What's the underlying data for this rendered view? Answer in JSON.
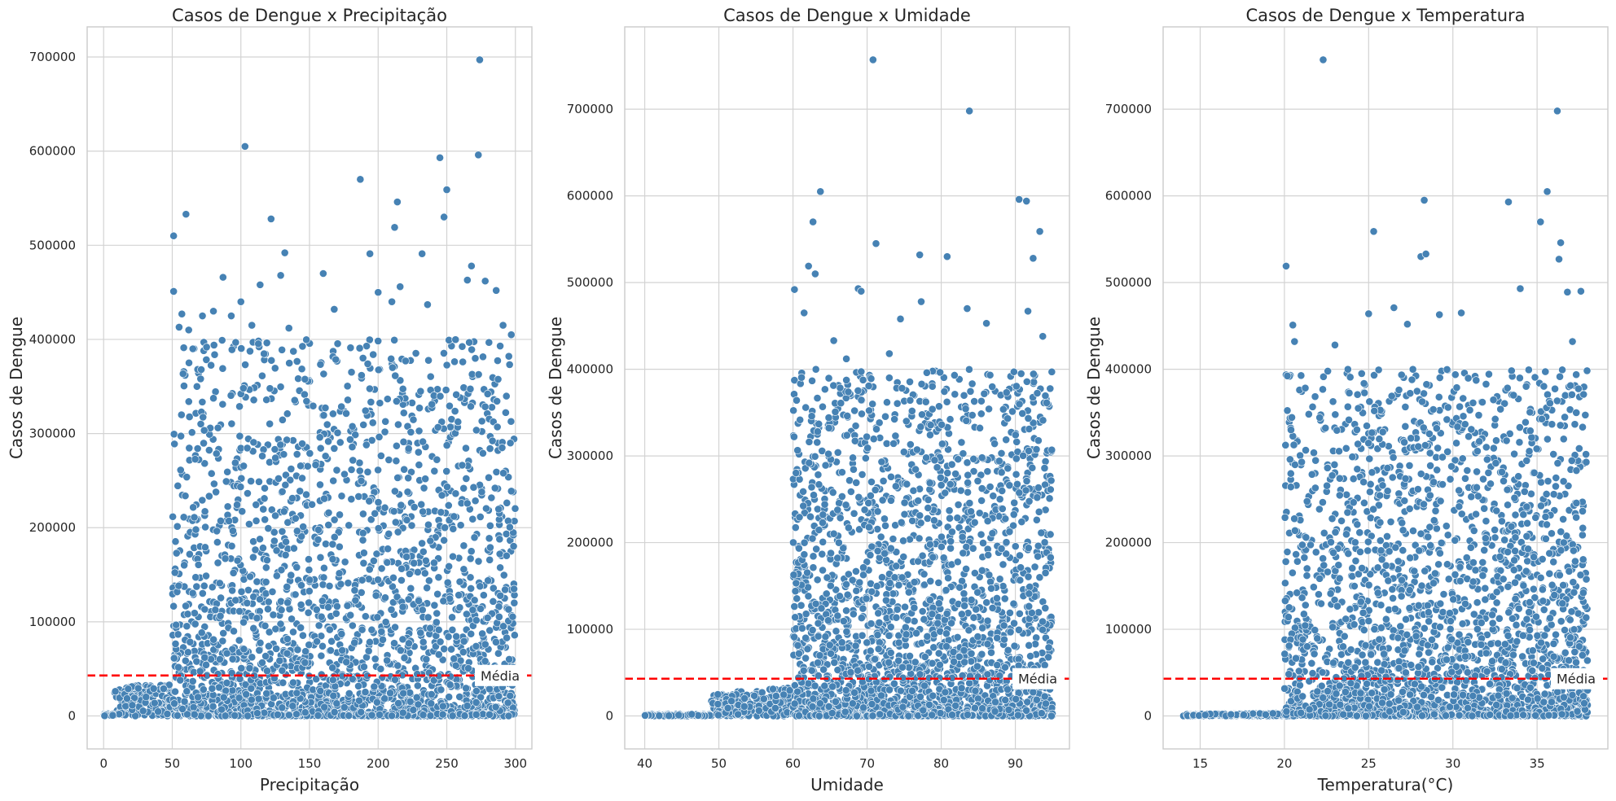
{
  "colors": {
    "points": "#4682b4",
    "mean_line": "#ff0000",
    "grid": "#d3d3d3",
    "spine": "#cccccc"
  },
  "chart_data": [
    {
      "type": "scatter",
      "title": "Casos de Dengue x Precipitação",
      "xlabel": "Precipitação",
      "ylabel": "Casos de Dengue",
      "xlim": [
        -12,
        312
      ],
      "ylim": [
        -35000,
        732000
      ],
      "xticks": [
        0,
        50,
        100,
        150,
        200,
        250,
        300
      ],
      "yticks": [
        0,
        100000,
        200000,
        300000,
        400000,
        500000,
        600000,
        700000
      ],
      "grid": true,
      "mean_value": 43000,
      "mean_label": "Média",
      "x_threshold": 50,
      "x_range": [
        0,
        300
      ],
      "points": [
        {
          "x": 51,
          "y": 510000
        },
        {
          "x": 51,
          "y": 451000
        },
        {
          "x": 55,
          "y": 413000
        },
        {
          "x": 57,
          "y": 427000
        },
        {
          "x": 60,
          "y": 533000
        },
        {
          "x": 62,
          "y": 410000
        },
        {
          "x": 65,
          "y": 390000
        },
        {
          "x": 68,
          "y": 350000
        },
        {
          "x": 72,
          "y": 425000
        },
        {
          "x": 80,
          "y": 430000
        },
        {
          "x": 87,
          "y": 466000
        },
        {
          "x": 93,
          "y": 425000
        },
        {
          "x": 100,
          "y": 440000
        },
        {
          "x": 103,
          "y": 605000
        },
        {
          "x": 108,
          "y": 415000
        },
        {
          "x": 114,
          "y": 458000
        },
        {
          "x": 122,
          "y": 528000
        },
        {
          "x": 129,
          "y": 468000
        },
        {
          "x": 132,
          "y": 492000
        },
        {
          "x": 135,
          "y": 412000
        },
        {
          "x": 160,
          "y": 470000
        },
        {
          "x": 168,
          "y": 432000
        },
        {
          "x": 187,
          "y": 570000
        },
        {
          "x": 194,
          "y": 491000
        },
        {
          "x": 200,
          "y": 450000
        },
        {
          "x": 210,
          "y": 440000
        },
        {
          "x": 212,
          "y": 519000
        },
        {
          "x": 214,
          "y": 546000
        },
        {
          "x": 216,
          "y": 456000
        },
        {
          "x": 232,
          "y": 491000
        },
        {
          "x": 236,
          "y": 437000
        },
        {
          "x": 245,
          "y": 593000
        },
        {
          "x": 248,
          "y": 530000
        },
        {
          "x": 250,
          "y": 559000
        },
        {
          "x": 265,
          "y": 463000
        },
        {
          "x": 268,
          "y": 478000
        },
        {
          "x": 273,
          "y": 596000
        },
        {
          "x": 274,
          "y": 697000
        },
        {
          "x": 278,
          "y": 462000
        },
        {
          "x": 286,
          "y": 452000
        },
        {
          "x": 291,
          "y": 415000
        },
        {
          "x": 297,
          "y": 405000
        }
      ]
    },
    {
      "type": "scatter",
      "title": "Casos de Dengue x Umidade",
      "xlabel": "Umidade",
      "ylabel": "Casos de Dengue",
      "xlim": [
        37.3,
        97.3
      ],
      "ylim": [
        -38000,
        795000
      ],
      "xticks": [
        40,
        50,
        60,
        70,
        80,
        90
      ],
      "yticks": [
        0,
        100000,
        200000,
        300000,
        400000,
        500000,
        600000,
        700000
      ],
      "grid": true,
      "mean_value": 43000,
      "mean_label": "Média",
      "x_threshold": 60,
      "x_range": [
        40,
        95
      ],
      "points": [
        {
          "x": 60.2,
          "y": 492000
        },
        {
          "x": 61.5,
          "y": 465000
        },
        {
          "x": 62.1,
          "y": 519000
        },
        {
          "x": 62.7,
          "y": 570000
        },
        {
          "x": 63.0,
          "y": 510000
        },
        {
          "x": 63.7,
          "y": 605000
        },
        {
          "x": 65.5,
          "y": 433000
        },
        {
          "x": 67.2,
          "y": 412000
        },
        {
          "x": 68.8,
          "y": 493000
        },
        {
          "x": 69.2,
          "y": 490000
        },
        {
          "x": 70.8,
          "y": 757000
        },
        {
          "x": 71.2,
          "y": 545000
        },
        {
          "x": 73.0,
          "y": 418000
        },
        {
          "x": 74.5,
          "y": 458000
        },
        {
          "x": 77.1,
          "y": 532000
        },
        {
          "x": 77.3,
          "y": 478000
        },
        {
          "x": 80.8,
          "y": 530000
        },
        {
          "x": 83.5,
          "y": 470000
        },
        {
          "x": 83.8,
          "y": 698000
        },
        {
          "x": 86.1,
          "y": 453000
        },
        {
          "x": 90.5,
          "y": 596000
        },
        {
          "x": 91.5,
          "y": 594000
        },
        {
          "x": 92.4,
          "y": 528000
        },
        {
          "x": 93.3,
          "y": 559000
        },
        {
          "x": 91.7,
          "y": 467000
        },
        {
          "x": 93.7,
          "y": 438000
        }
      ]
    },
    {
      "type": "scatter",
      "title": "Casos de Dengue x Temperatura",
      "xlabel": "Temperatura(°C)",
      "ylabel": "Casos de Dengue",
      "xlim": [
        12.8,
        39.2
      ],
      "ylim": [
        -38000,
        795000
      ],
      "xticks": [
        15,
        20,
        25,
        30,
        35
      ],
      "yticks": [
        0,
        100000,
        200000,
        300000,
        400000,
        500000,
        600000,
        700000
      ],
      "grid": true,
      "mean_value": 43000,
      "mean_label": "Média",
      "x_threshold": 20,
      "x_range": [
        14,
        38
      ],
      "points": [
        {
          "x": 20.1,
          "y": 519000
        },
        {
          "x": 20.5,
          "y": 451000
        },
        {
          "x": 20.6,
          "y": 432000
        },
        {
          "x": 22.3,
          "y": 757000
        },
        {
          "x": 23.0,
          "y": 428000
        },
        {
          "x": 25.0,
          "y": 464000
        },
        {
          "x": 25.3,
          "y": 559000
        },
        {
          "x": 26.5,
          "y": 471000
        },
        {
          "x": 27.3,
          "y": 452000
        },
        {
          "x": 28.1,
          "y": 530000
        },
        {
          "x": 28.3,
          "y": 595000
        },
        {
          "x": 28.4,
          "y": 533000
        },
        {
          "x": 29.2,
          "y": 463000
        },
        {
          "x": 30.5,
          "y": 465000
        },
        {
          "x": 33.3,
          "y": 593000
        },
        {
          "x": 34.0,
          "y": 493000
        },
        {
          "x": 35.2,
          "y": 570000
        },
        {
          "x": 35.6,
          "y": 605000
        },
        {
          "x": 36.2,
          "y": 698000
        },
        {
          "x": 36.4,
          "y": 546000
        },
        {
          "x": 36.3,
          "y": 527000
        },
        {
          "x": 36.8,
          "y": 489000
        },
        {
          "x": 37.6,
          "y": 490000
        },
        {
          "x": 37.1,
          "y": 432000
        }
      ]
    }
  ]
}
